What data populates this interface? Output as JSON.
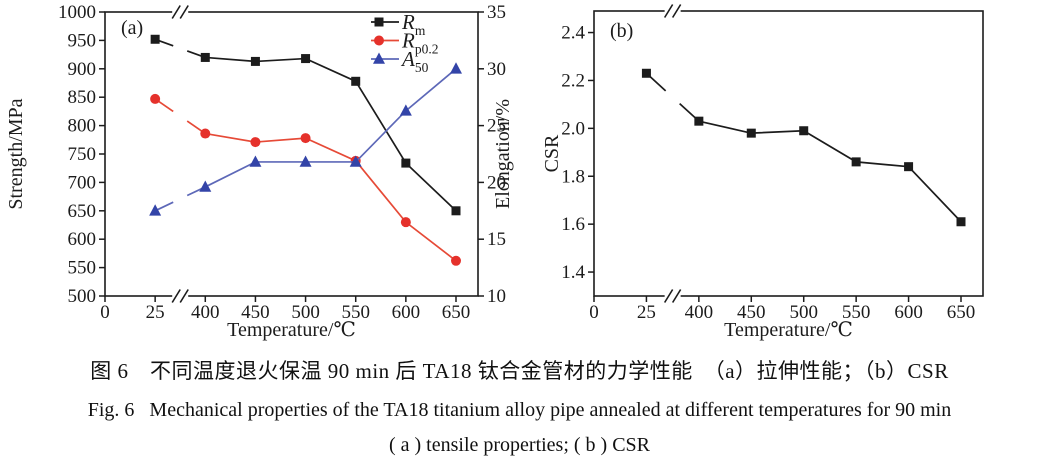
{
  "figure": {
    "caption_line1_zh": "图 6　不同温度退火保温 90 min 后 TA18 钛合金管材的力学性能　（a）拉伸性能；（b）CSR",
    "caption_line2_en": "Fig. 6   Mechanical properties of the TA18 titanium alloy pipe annealed at different temperatures for 90 min",
    "caption_line3_en": "( a ) tensile properties; ( b ) CSR"
  },
  "colors": {
    "axis": "#1c1c1c",
    "rm_black": "#1c1c1c",
    "rp02_red_marker": "#e5312b",
    "rp02_red_line": "#e64a37",
    "a50_blue_marker": "#3344a8",
    "a50_blue_line": "#5d68b8"
  },
  "chart_data": [
    {
      "id": "a",
      "type": "line",
      "panel_label": "(a)",
      "xlabel": "Temperature/℃",
      "ylabel_left": "Strength/MPa",
      "ylabel_right": "Elongation/%",
      "x_tick_labels": [
        "0",
        "25",
        "400",
        "450",
        "500",
        "550",
        "600",
        "650"
      ],
      "x_axis_break_after": "25",
      "categories": [
        25,
        400,
        450,
        500,
        550,
        600,
        650
      ],
      "ylim_left": [
        500,
        1000
      ],
      "yticks_left": {
        "values": [
          500,
          550,
          600,
          650,
          700,
          750,
          800,
          850,
          900,
          950,
          1000
        ],
        "labels": [
          "500",
          "550",
          "600",
          "650",
          "700",
          "750",
          "800",
          "850",
          "900",
          "950",
          "1000"
        ]
      },
      "ylim_right": [
        10,
        35
      ],
      "yticks_right": {
        "values": [
          10,
          15,
          20,
          25,
          30,
          35
        ],
        "labels": [
          "10",
          "15",
          "20",
          "25",
          "30",
          "35"
        ]
      },
      "grid": false,
      "legend_position": "top-right",
      "series": [
        {
          "name": "Rm",
          "label_main": "R",
          "label_sub": "m",
          "axis": "left",
          "marker": "square",
          "marker_color": "#1c1c1c",
          "line_color": "#1c1c1c",
          "values": [
            952,
            920,
            913,
            918,
            878,
            734,
            650
          ]
        },
        {
          "name": "Rp0.2",
          "label_main": "R",
          "label_sub": "p0.2",
          "axis": "left",
          "marker": "circle",
          "marker_color": "#e5312b",
          "line_color": "#e64a37",
          "values": [
            847,
            786,
            771,
            778,
            738,
            630,
            562
          ]
        },
        {
          "name": "A50",
          "label_main": "A",
          "label_sub": "50",
          "axis": "right",
          "marker": "triangle",
          "marker_color": "#3344a8",
          "line_color": "#5d68b8",
          "values": [
            17.5,
            19.6,
            21.8,
            21.8,
            21.8,
            26.3,
            30.0
          ]
        }
      ]
    },
    {
      "id": "b",
      "type": "line",
      "panel_label": "(b)",
      "xlabel": "Temperature/℃",
      "ylabel_left": "CSR",
      "x_tick_labels": [
        "0",
        "25",
        "400",
        "450",
        "500",
        "550",
        "600",
        "650"
      ],
      "x_axis_break_after": "25",
      "categories": [
        25,
        400,
        450,
        500,
        550,
        600,
        650
      ],
      "ylim_left": [
        1.3,
        2.49
      ],
      "yticks_left": {
        "values": [
          1.4,
          1.6,
          1.8,
          2.0,
          2.2,
          2.4
        ],
        "labels": [
          "1.4",
          "1.6",
          "1.8",
          "2.0",
          "2.2",
          "2.4"
        ]
      },
      "grid": false,
      "legend_position": "none",
      "series": [
        {
          "name": "CSR",
          "label_main": "CSR",
          "label_sub": "",
          "axis": "left",
          "marker": "square",
          "marker_color": "#1c1c1c",
          "line_color": "#1c1c1c",
          "values": [
            2.23,
            2.03,
            1.98,
            1.99,
            1.86,
            1.84,
            1.61
          ]
        }
      ]
    }
  ]
}
